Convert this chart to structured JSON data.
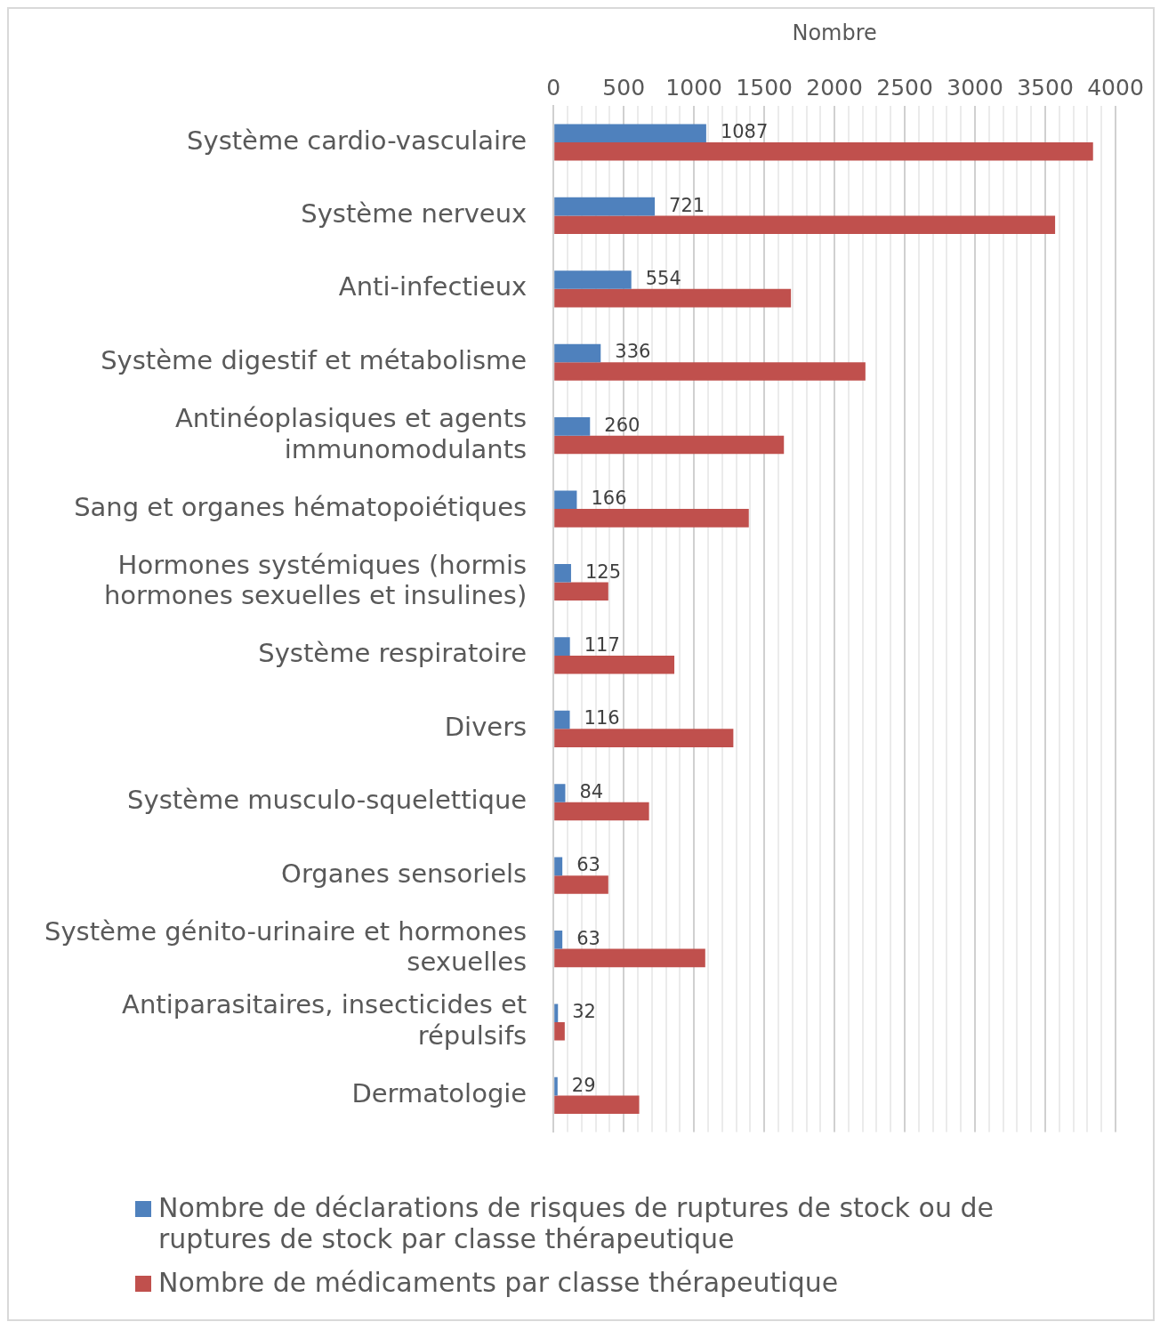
{
  "chart_data": {
    "type": "bar",
    "orientation": "horizontal",
    "xlabel": "Nombre",
    "categories": [
      "Système cardio-vasculaire",
      "Système nerveux",
      "Anti-infectieux",
      "Système digestif et métabolisme",
      "Antinéoplasiques et agents immunomodulants",
      "Sang et organes hématopoiétiques",
      "Hormones systémiques (hormis hormones sexuelles et insulines)",
      "Système respiratoire",
      "Divers",
      "Système musculo-squelettique",
      "Organes sensoriels",
      "Système génito-urinaire et hormones sexuelles",
      "Antiparasitaires, insecticides et répulsifs",
      "Dermatologie"
    ],
    "series": [
      {
        "name": "Nombre de déclarations de risques de ruptures de stock ou de ruptures de stock par classe thérapeutique",
        "color": "#4f81bd",
        "values": [
          1087,
          721,
          554,
          336,
          260,
          166,
          125,
          117,
          116,
          84,
          63,
          63,
          32,
          29
        ],
        "value_labels": [
          "1087",
          "721",
          "554",
          "336",
          "260",
          "166",
          "125",
          "117",
          "116",
          "84",
          "63",
          "63",
          "32",
          "29"
        ]
      },
      {
        "name": "Nombre de médicaments par classe thérapeutique",
        "color": "#c0504d",
        "values": [
          3840,
          3570,
          1690,
          2220,
          1640,
          1390,
          390,
          860,
          1280,
          680,
          390,
          1080,
          80,
          610
        ]
      }
    ],
    "xlim": [
      0,
      4000
    ],
    "xticks": [
      0,
      {
        "value": 100,
        "label": null
      },
      {
        "value": 200,
        "label": null
      },
      {
        "value": 300,
        "label": null
      },
      {
        "value": 400,
        "label": null
      },
      500,
      {
        "value": 600,
        "label": null
      },
      {
        "value": 700,
        "label": null
      },
      {
        "value": 800,
        "label": null
      },
      {
        "value": 900,
        "label": null
      },
      1000,
      {
        "value": 1100,
        "label": null
      },
      {
        "value": 1200,
        "label": null
      },
      {
        "value": 1300,
        "label": null
      },
      {
        "value": 1400,
        "label": null
      },
      1500,
      {
        "value": 1600,
        "label": null
      },
      {
        "value": 1700,
        "label": null
      },
      {
        "value": 1800,
        "label": null
      },
      {
        "value": 1900,
        "label": null
      },
      2000,
      {
        "value": 2100,
        "label": null
      },
      {
        "value": 2200,
        "label": null
      },
      {
        "value": 2300,
        "label": null
      },
      {
        "value": 2400,
        "label": null
      },
      2500,
      {
        "value": 2600,
        "label": null
      },
      {
        "value": 2700,
        "label": null
      },
      {
        "value": 2800,
        "label": null
      },
      {
        "value": 2900,
        "label": null
      },
      3000,
      {
        "value": 3100,
        "label": null
      },
      {
        "value": 3200,
        "label": null
      },
      {
        "value": 3300,
        "label": null
      },
      {
        "value": 3400,
        "label": null
      },
      3500,
      {
        "value": 3600,
        "label": null
      },
      {
        "value": 3700,
        "label": null
      },
      {
        "value": 3800,
        "label": null
      },
      {
        "value": 3900,
        "label": null
      },
      4000
    ],
    "grid": "x",
    "legend": "bottom"
  }
}
